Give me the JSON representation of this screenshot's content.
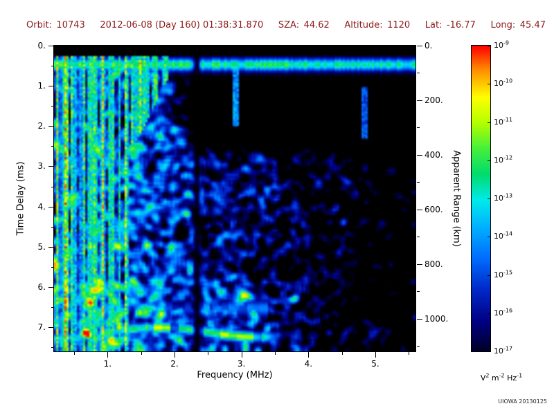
{
  "header": {
    "items": [
      {
        "label": "Orbit:",
        "value": "10743"
      },
      {
        "label": "",
        "value": "2012-06-08 (Day 160) 01:38:31.870"
      },
      {
        "label": "SZA:",
        "value": "44.62"
      },
      {
        "label": "Altitude:",
        "value": "1120"
      },
      {
        "label": "Lat:",
        "value": "-16.77"
      },
      {
        "label": "Long:",
        "value": "45.47"
      }
    ]
  },
  "chart_data": {
    "type": "heatmap",
    "title": "",
    "xlabel": "Frequency (MHz)",
    "ylabel": "Time Delay (ms)",
    "y2label": "Apparent Range (km)",
    "x_range_mhz": [
      0.2,
      5.6
    ],
    "x_ticks": [
      "1.",
      "2.",
      "3.",
      "4.",
      "5."
    ],
    "x_tick_values": [
      1,
      2,
      3,
      4,
      5
    ],
    "x_minor_tick_step_mhz": 0.5,
    "y_range_ms": [
      0,
      7.6
    ],
    "y_ticks": [
      "0.",
      "1.",
      "2.",
      "3.",
      "4.",
      "5.",
      "6.",
      "7."
    ],
    "y_tick_values": [
      0,
      1,
      2,
      3,
      4,
      5,
      6,
      7
    ],
    "y_minor_tick_step_ms": 0.5,
    "y2_range_km": [
      0,
      1120
    ],
    "y2_ticks": [
      "0.",
      "200.",
      "400.",
      "600.",
      "800.",
      "1000."
    ],
    "y2_tick_values": [
      0,
      200,
      400,
      600,
      800,
      1000
    ],
    "y2_minor_tick_step_km": 100,
    "grid": false,
    "legend": "none",
    "colorbar": {
      "scale": "log",
      "min": "1e-17",
      "max": "1e-9",
      "tick_exponents": [
        -9,
        -10,
        -11,
        -12,
        -13,
        -14,
        -15,
        -16,
        -17
      ],
      "units_parts": [
        {
          "base": "V",
          "exp": "2"
        },
        {
          "base": "m",
          "exp": "-2"
        },
        {
          "base": "Hz",
          "exp": "-1"
        }
      ],
      "top_color": "#ff0000",
      "bottom_color": "#000028"
    },
    "features": [
      {
        "name": "surface-reflection-band",
        "time_delay_ms": [
          0.3,
          0.6
        ],
        "freq_mhz": [
          0.2,
          5.6
        ],
        "intensity": "~1e-12 green/cyan horizontal band across full bandwidth"
      },
      {
        "name": "low-frequency-interference-stripes",
        "time_delay_ms": [
          0,
          7.6
        ],
        "freq_mhz": [
          0.2,
          1.5
        ],
        "intensity": "~1e-12 bright green vertical striping, full height, wedge extending to ~1.9 MHz above 2.5 ms"
      },
      {
        "name": "ionospheric-echo-trace",
        "time_delay_ms": [
          6.8,
          7.4
        ],
        "freq_mhz": [
          0.45,
          3.6
        ],
        "intensity": "~1e-12 clumpy green/cyan trace near 7 ms"
      },
      {
        "name": "diffuse-noise-blobs",
        "time_delay_ms": [
          0.6,
          7.6
        ],
        "freq_mhz": [
          0.2,
          5.6
        ],
        "intensity": "1e-16 to 1e-14 blue speckle, denser at low frequency, sparse upper-right"
      },
      {
        "name": "attenuation-gap",
        "freq_mhz": [
          2.28,
          2.4
        ],
        "note": "dark vertical column through band and trace"
      }
    ]
  },
  "watermark": "UIOWA 20130125",
  "colors": {
    "header_text": "#8b1a1a",
    "axis_text": "#000000",
    "plot_background": "#000000",
    "page_background": "#ffffff"
  }
}
